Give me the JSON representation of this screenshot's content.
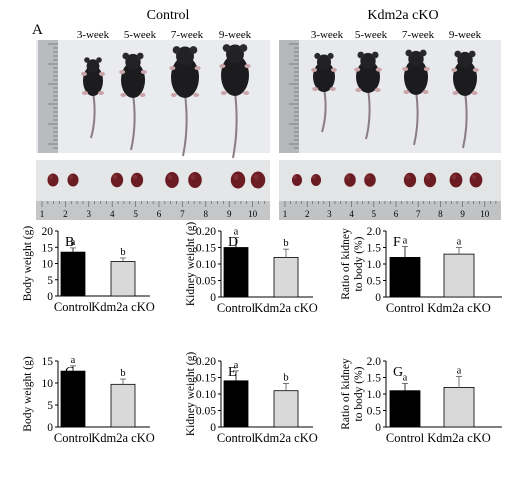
{
  "figure": {
    "panel_a_label": "A",
    "group_left": "Control",
    "group_right": "Kdm2a cKO",
    "ages": [
      "3-week",
      "5-week",
      "7-week",
      "9-week"
    ],
    "ruler_numbers": [
      "1",
      "2",
      "3",
      "4",
      "5",
      "6",
      "7",
      "8",
      "9",
      "10"
    ]
  },
  "chart_data": [
    {
      "panel": "B",
      "type": "bar",
      "categories": [
        "Control",
        "Kdm2a cKO"
      ],
      "values": [
        13.5,
        10.6
      ],
      "errors": [
        1.3,
        1.1
      ],
      "colors": [
        "#000000",
        "#d9d9d9"
      ],
      "sig": [
        "a",
        "b"
      ],
      "ylabel": "Body weight (g)",
      "ylim": [
        0,
        20
      ],
      "yticks": [
        "0",
        "5",
        "10",
        "15",
        "20"
      ]
    },
    {
      "panel": "C",
      "type": "bar",
      "categories": [
        "Control",
        "Kdm2a cKO"
      ],
      "values": [
        12.7,
        9.7
      ],
      "errors": [
        1.2,
        1.2
      ],
      "colors": [
        "#000000",
        "#d9d9d9"
      ],
      "sig": [
        "a",
        "b"
      ],
      "ylabel": "Body weight (g)",
      "ylim": [
        0,
        15
      ],
      "yticks": [
        "0",
        "5",
        "10",
        "15"
      ]
    },
    {
      "panel": "D",
      "type": "bar",
      "categories": [
        "Control",
        "Kdm2a cKO"
      ],
      "values": [
        0.15,
        0.12
      ],
      "errors": [
        0.03,
        0.025
      ],
      "colors": [
        "#000000",
        "#d9d9d9"
      ],
      "sig": [
        "a",
        "b"
      ],
      "ylabel": "Kidney weight (g)",
      "ylim": [
        0,
        0.2
      ],
      "yticks": [
        "0",
        "0.05",
        "0.10",
        "0.15",
        "0.20"
      ]
    },
    {
      "panel": "E",
      "type": "bar",
      "categories": [
        "Control",
        "Kdm2a cKO"
      ],
      "values": [
        0.14,
        0.11
      ],
      "errors": [
        0.03,
        0.022
      ],
      "colors": [
        "#000000",
        "#d9d9d9"
      ],
      "sig": [
        "a",
        "b"
      ],
      "ylabel": "Kidney weight (g)",
      "ylim": [
        0,
        0.2
      ],
      "yticks": [
        "0",
        "0.05",
        "0.10",
        "0.15",
        "0.20"
      ]
    },
    {
      "panel": "F",
      "type": "bar",
      "categories": [
        "Control",
        "Kdm2a cKO"
      ],
      "values": [
        1.2,
        1.3
      ],
      "errors": [
        0.33,
        0.2
      ],
      "colors": [
        "#000000",
        "#d9d9d9"
      ],
      "sig": [
        "a",
        "a"
      ],
      "ylabel": "Ratio of kidney to body (%)",
      "ylabel_lines": [
        "Ratio of kidney",
        "to body (%)"
      ],
      "ylim": [
        0,
        2.0
      ],
      "yticks": [
        "0",
        "0.5",
        "1.0",
        "1.5",
        "2.0"
      ]
    },
    {
      "panel": "G",
      "type": "bar",
      "categories": [
        "Control",
        "Kdm2a cKO"
      ],
      "values": [
        1.1,
        1.2
      ],
      "errors": [
        0.22,
        0.33
      ],
      "colors": [
        "#000000",
        "#d9d9d9"
      ],
      "sig": [
        "a",
        "a"
      ],
      "ylabel": "Ratio of kidney to body (%)",
      "ylabel_lines": [
        "Ratio of kidney",
        "to body (%)"
      ],
      "ylim": [
        0,
        2.0
      ],
      "yticks": [
        "0",
        "0.5",
        "1.0",
        "1.5",
        "2.0"
      ]
    }
  ]
}
